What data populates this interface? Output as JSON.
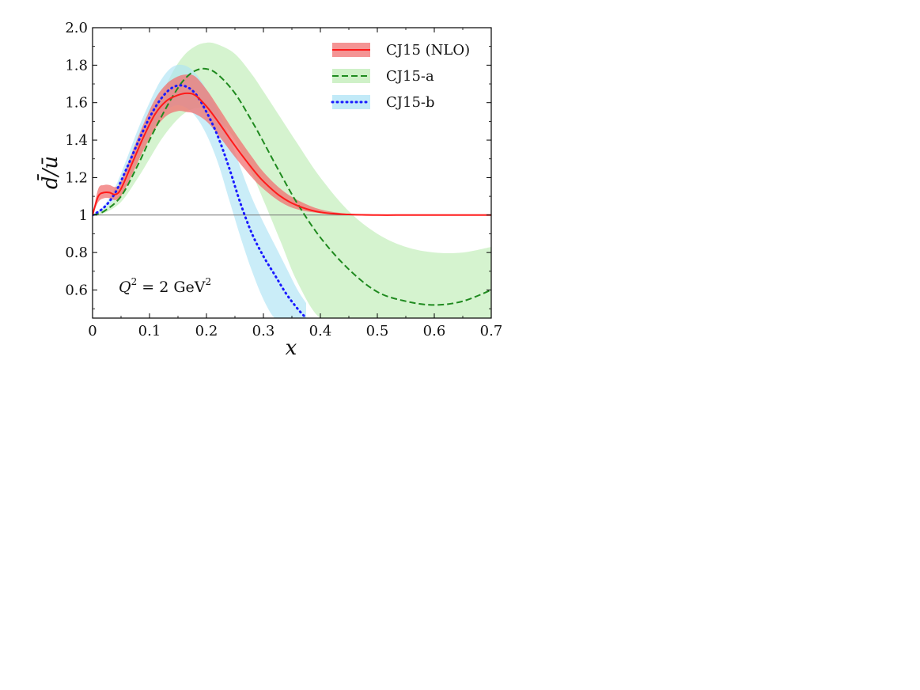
{
  "chart_data": {
    "type": "line",
    "xlabel": "x",
    "ylabel": "d̄/ū",
    "xlim": [
      0,
      0.7
    ],
    "ylim": [
      0.45,
      2.0
    ],
    "xticks": [
      "0",
      "0.1",
      "0.2",
      "0.3",
      "0.4",
      "0.5",
      "0.6",
      "0.7"
    ],
    "xtick_values": [
      0,
      0.1,
      0.2,
      0.3,
      0.4,
      0.5,
      0.6,
      0.7
    ],
    "yticks": [
      "0.6",
      "0.8",
      "1",
      "1.2",
      "1.4",
      "1.6",
      "1.8",
      "2.0"
    ],
    "ytick_values": [
      0.6,
      0.8,
      1.0,
      1.2,
      1.4,
      1.6,
      1.8,
      2.0
    ],
    "reference_line": 1.0,
    "annotation": {
      "prefix": "Q",
      "sup1": "2",
      "middle": " = 2 GeV",
      "sup2": "2"
    },
    "legend_position": "top-right",
    "series": [
      {
        "name": "CJ15 (NLO)",
        "style": "solid",
        "color": "#ff1a1a",
        "band_color": "#f07070",
        "x": [
          0.0,
          0.01,
          0.02,
          0.03,
          0.04,
          0.05,
          0.07,
          0.09,
          0.11,
          0.13,
          0.15,
          0.165,
          0.18,
          0.2,
          0.22,
          0.25,
          0.28,
          0.3,
          0.33,
          0.36,
          0.4,
          0.45,
          0.5,
          0.55,
          0.6,
          0.7
        ],
        "y": [
          1.0,
          1.1,
          1.12,
          1.12,
          1.11,
          1.14,
          1.28,
          1.42,
          1.54,
          1.61,
          1.64,
          1.65,
          1.64,
          1.58,
          1.5,
          1.37,
          1.25,
          1.18,
          1.1,
          1.05,
          1.015,
          1.003,
          1.0,
          1.0,
          1.0,
          1.0
        ],
        "lower": [
          1.0,
          1.07,
          1.09,
          1.09,
          1.08,
          1.1,
          1.22,
          1.35,
          1.46,
          1.53,
          1.555,
          1.55,
          1.54,
          1.5,
          1.43,
          1.31,
          1.2,
          1.14,
          1.07,
          1.03,
          1.01,
          1.001,
          1.0,
          1.0,
          1.0,
          1.0
        ],
        "upper": [
          1.0,
          1.14,
          1.16,
          1.16,
          1.15,
          1.18,
          1.34,
          1.49,
          1.62,
          1.7,
          1.74,
          1.75,
          1.74,
          1.67,
          1.58,
          1.44,
          1.31,
          1.23,
          1.14,
          1.08,
          1.03,
          1.006,
          1.001,
          1.0,
          1.0,
          1.0
        ]
      },
      {
        "name": "CJ15-a",
        "style": "dashed",
        "color": "#1f8a1f",
        "band_color": "#bfecb5",
        "x": [
          0.0,
          0.02,
          0.05,
          0.08,
          0.1,
          0.12,
          0.14,
          0.16,
          0.18,
          0.2,
          0.22,
          0.25,
          0.28,
          0.3,
          0.33,
          0.36,
          0.4,
          0.45,
          0.5,
          0.55,
          0.6,
          0.65,
          0.7
        ],
        "y": [
          1.0,
          1.02,
          1.1,
          1.27,
          1.4,
          1.52,
          1.63,
          1.72,
          1.77,
          1.78,
          1.75,
          1.65,
          1.5,
          1.39,
          1.22,
          1.06,
          0.88,
          0.71,
          0.59,
          0.54,
          0.52,
          0.54,
          0.6
        ],
        "lower": [
          1.0,
          1.01,
          1.07,
          1.2,
          1.3,
          1.4,
          1.48,
          1.54,
          1.57,
          1.57,
          1.52,
          1.4,
          1.22,
          1.08,
          0.86,
          0.64,
          0.45,
          0.45,
          0.45,
          0.45,
          0.45,
          0.45,
          0.45
        ],
        "upper": [
          1.0,
          1.03,
          1.13,
          1.34,
          1.5,
          1.63,
          1.76,
          1.85,
          1.9,
          1.92,
          1.91,
          1.86,
          1.75,
          1.66,
          1.52,
          1.38,
          1.2,
          1.02,
          0.9,
          0.83,
          0.8,
          0.8,
          0.83
        ]
      },
      {
        "name": "CJ15-b",
        "style": "dotted",
        "color": "#1a1aff",
        "band_color": "#aee3f5",
        "x": [
          0.0,
          0.02,
          0.04,
          0.06,
          0.08,
          0.1,
          0.12,
          0.14,
          0.16,
          0.18,
          0.2,
          0.22,
          0.24,
          0.26,
          0.28,
          0.3,
          0.32,
          0.34,
          0.36,
          0.375
        ],
        "y": [
          1.0,
          1.04,
          1.12,
          1.25,
          1.39,
          1.52,
          1.62,
          1.68,
          1.69,
          1.65,
          1.55,
          1.42,
          1.25,
          1.06,
          0.9,
          0.78,
          0.68,
          0.58,
          0.5,
          0.45
        ],
        "lower": [
          1.0,
          1.03,
          1.09,
          1.2,
          1.32,
          1.44,
          1.53,
          1.58,
          1.58,
          1.53,
          1.43,
          1.28,
          1.08,
          0.88,
          0.7,
          0.55,
          0.45,
          0.45,
          0.45,
          0.45
        ],
        "upper": [
          1.0,
          1.05,
          1.15,
          1.3,
          1.46,
          1.6,
          1.72,
          1.79,
          1.8,
          1.76,
          1.67,
          1.56,
          1.42,
          1.25,
          1.09,
          0.96,
          0.84,
          0.72,
          0.6,
          0.53
        ]
      }
    ]
  }
}
